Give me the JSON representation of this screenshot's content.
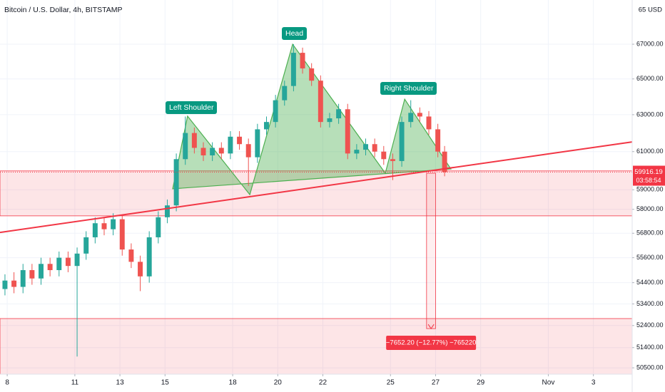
{
  "chart_data": {
    "type": "candlestick",
    "title": "Bitcoin / U.S. Dollar, 4h, BITSTAMP",
    "currency": "65 USD",
    "log_scale": true,
    "grid": true,
    "up_color": "#26a69a",
    "down_color": "#ef5350",
    "xlim": [
      7.68,
      35.72
    ],
    "ylim": [
      50220,
      69640
    ],
    "xticks": [
      8,
      11,
      13,
      15,
      18,
      20,
      22,
      25,
      27,
      29,
      {
        "value": 32,
        "label": "Nov"
      },
      {
        "value": 34,
        "label": "3"
      }
    ],
    "yticks": [
      {
        "value": 67000,
        "label": "67000.00"
      },
      {
        "value": 65000,
        "label": "65000.00"
      },
      {
        "value": 63000,
        "label": "63000.00"
      },
      {
        "value": 61000,
        "label": "61000.00"
      },
      {
        "value": 59000,
        "label": "59000.00"
      },
      {
        "value": 58000,
        "label": "58000.00"
      },
      {
        "value": 56800,
        "label": "56800.00"
      },
      {
        "value": 55600,
        "label": "55600.00"
      },
      {
        "value": 54400,
        "label": "54400.00"
      },
      {
        "value": 53400,
        "label": "53400.00"
      },
      {
        "value": 52400,
        "label": "52400.00"
      },
      {
        "value": 51400,
        "label": "51400.00"
      },
      {
        "value": 50500,
        "label": "50500.00"
      }
    ],
    "x": [
      7.9,
      8.3,
      8.7,
      9.1,
      9.5,
      9.9,
      10.3,
      10.7,
      11.1,
      11.5,
      11.9,
      12.3,
      12.7,
      13.1,
      13.5,
      13.9,
      14.3,
      14.7,
      15.1,
      15.5,
      15.9,
      16.3,
      16.7,
      17.1,
      17.5,
      17.9,
      18.3,
      18.7,
      19.1,
      19.5,
      19.9,
      20.3,
      20.7,
      21.1,
      21.5,
      21.9,
      22.3,
      22.7,
      23.1,
      23.5,
      23.9,
      24.3,
      24.7,
      25.1,
      25.5,
      25.9,
      26.3,
      26.7,
      27.1,
      27.4
    ],
    "open": [
      54100,
      54500,
      54200,
      55000,
      54600,
      55300,
      55000,
      55600,
      55200,
      55800,
      56600,
      57300,
      57000,
      57500,
      56000,
      55400,
      54700,
      56600,
      57600,
      58200,
      60600,
      62000,
      61200,
      60800,
      61200,
      60900,
      61800,
      61400,
      60700,
      62200,
      62600,
      63800,
      64600,
      66500,
      65600,
      64900,
      62600,
      62800,
      63300,
      60900,
      61100,
      61400,
      61000,
      60600,
      60500,
      62600,
      63100,
      62900,
      62200,
      61000
    ],
    "high": [
      54800,
      54900,
      55300,
      55300,
      55600,
      55600,
      55900,
      55900,
      56100,
      56900,
      57600,
      57600,
      57800,
      57700,
      56300,
      55700,
      56900,
      57900,
      58500,
      60900,
      62900,
      62300,
      61500,
      61500,
      61500,
      62100,
      62100,
      61700,
      62500,
      62900,
      64100,
      64900,
      67000,
      66800,
      65900,
      65200,
      63100,
      63600,
      63600,
      61400,
      61700,
      61700,
      61300,
      60900,
      62900,
      63800,
      63400,
      63200,
      62500,
      61300
    ],
    "low": [
      53800,
      53900,
      53900,
      54300,
      54300,
      54700,
      54700,
      54900,
      51000,
      55500,
      56300,
      56700,
      56700,
      55700,
      55100,
      54000,
      54400,
      56300,
      57300,
      57900,
      60300,
      60900,
      60500,
      60500,
      60600,
      60600,
      61100,
      59200,
      60400,
      61900,
      62300,
      63500,
      64300,
      65300,
      64600,
      62300,
      62300,
      62500,
      60600,
      60600,
      60800,
      60700,
      60300,
      59500,
      60200,
      62300,
      62600,
      61900,
      60700,
      59700
    ],
    "close": [
      54500,
      54200,
      55000,
      54600,
      55300,
      55000,
      55600,
      55200,
      55800,
      56600,
      57300,
      57000,
      57500,
      56000,
      55400,
      54700,
      56600,
      57600,
      58200,
      60600,
      62000,
      61200,
      60800,
      61200,
      60900,
      61800,
      61400,
      60700,
      62200,
      62600,
      63800,
      64600,
      66500,
      65600,
      64900,
      62600,
      62800,
      63300,
      60900,
      61100,
      61400,
      61000,
      60600,
      60500,
      62600,
      63100,
      62900,
      62200,
      61000,
      59916.19
    ],
    "last_price": 59916.19,
    "countdown": "03:58:54",
    "pattern": {
      "x": [
        15.34,
        16.0,
        18.76,
        20.66,
        24.77,
        25.63,
        27.68
      ],
      "y": [
        59050,
        62920,
        58750,
        67000,
        59860,
        63860,
        60080
      ],
      "color": "#4caf50"
    },
    "pattern_labels": [
      "Left Shoulder",
      "Head",
      "Right Shoulder"
    ],
    "neckline": {
      "x": [
        7.68,
        35.72
      ],
      "y": [
        56840,
        61520
      ],
      "color": "#f23645"
    },
    "zones": [
      {
        "y": [
          57670,
          59980
        ]
      },
      {
        "y": [
          50220,
          52720
        ]
      }
    ],
    "measure": {
      "x": [
        26.6,
        27.0
      ],
      "y": [
        59860,
        52260
      ],
      "label": "−7652.20 (−12.77%) −765220"
    }
  }
}
